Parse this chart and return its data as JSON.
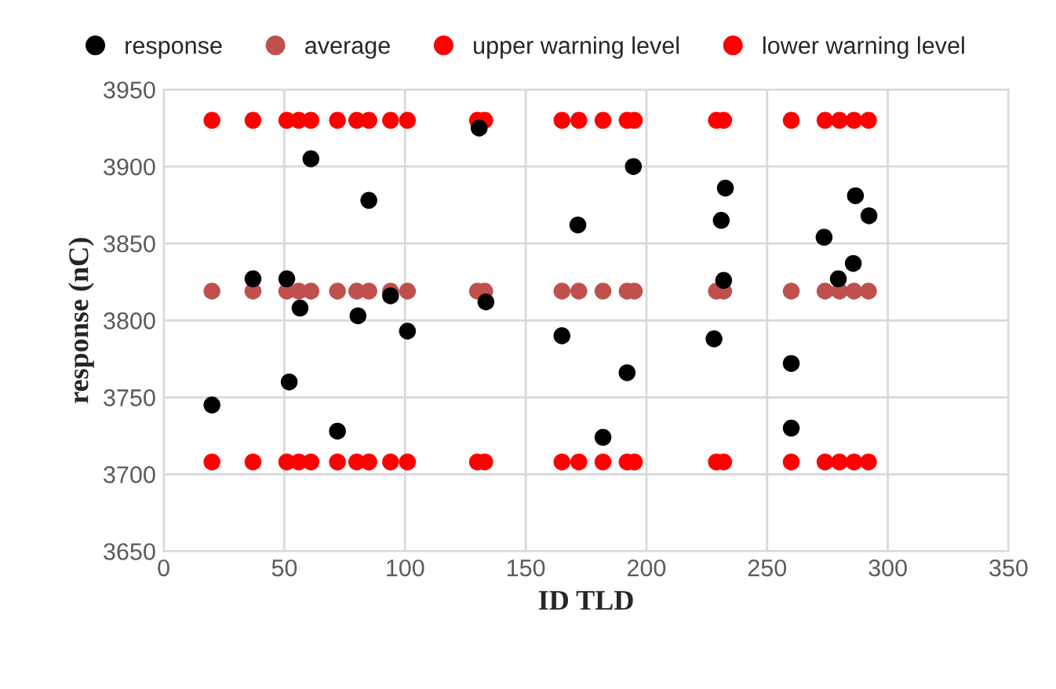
{
  "chart_data": {
    "type": "scatter",
    "xlabel": "ID TLD",
    "ylabel": "response (nC)",
    "series": [
      {
        "name": "response",
        "color": "#000000",
        "x": [
          20,
          37,
          51,
          52,
          56.5,
          61,
          72,
          80.5,
          85,
          94,
          101,
          130.7,
          133.5,
          165,
          171.6,
          182,
          192,
          194.6,
          228,
          231,
          232,
          232.7,
          260,
          260,
          273.6,
          279.5,
          285.7,
          286.6,
          292.2
        ],
        "values": [
          3745,
          3827,
          3827,
          3760,
          3808,
          3905,
          3728,
          3803,
          3878,
          3816,
          3793,
          3925,
          3812,
          3790,
          3862,
          3724,
          3766,
          3900,
          3788,
          3865,
          3826,
          3886,
          3772,
          3730,
          3854,
          3827,
          3837,
          3881,
          3868
        ]
      },
      {
        "name": "average",
        "color": "#c0504d",
        "x": [
          20,
          37,
          51,
          56,
          61,
          72,
          80,
          85,
          94,
          101,
          130,
          133,
          165,
          172,
          182,
          192,
          195,
          229,
          232,
          260,
          274,
          280,
          286,
          292
        ],
        "values": [
          3819,
          3819,
          3819,
          3819,
          3819,
          3819,
          3819,
          3819,
          3819,
          3819,
          3819,
          3819,
          3819,
          3819,
          3819,
          3819,
          3819,
          3819,
          3819,
          3819,
          3819,
          3819,
          3819,
          3819
        ]
      },
      {
        "name": "upper warning level",
        "color": "#ff0000",
        "x": [
          20,
          37,
          51,
          56,
          61,
          72,
          80,
          85,
          94,
          101,
          130,
          133,
          165,
          172,
          182,
          192,
          195,
          229,
          232,
          260,
          274,
          280,
          286,
          292
        ],
        "values": [
          3930,
          3930,
          3930,
          3930,
          3930,
          3930,
          3930,
          3930,
          3930,
          3930,
          3930,
          3930,
          3930,
          3930,
          3930,
          3930,
          3930,
          3930,
          3930,
          3930,
          3930,
          3930,
          3930,
          3930
        ]
      },
      {
        "name": "lower warning level",
        "color": "#ff0000",
        "x": [
          20,
          37,
          51,
          56,
          61,
          72,
          80,
          85,
          94,
          101,
          130,
          133,
          165,
          172,
          182,
          192,
          195,
          229,
          232,
          260,
          274,
          280,
          286,
          292
        ],
        "values": [
          3708,
          3708,
          3708,
          3708,
          3708,
          3708,
          3708,
          3708,
          3708,
          3708,
          3708,
          3708,
          3708,
          3708,
          3708,
          3708,
          3708,
          3708,
          3708,
          3708,
          3708,
          3708,
          3708,
          3708
        ]
      }
    ],
    "xlim": [
      0,
      350
    ],
    "xticks": [
      0,
      50,
      100,
      150,
      200,
      250,
      300,
      350
    ],
    "ylim": [
      3650,
      3950
    ],
    "yticks": [
      3650,
      3700,
      3750,
      3800,
      3850,
      3900,
      3950
    ],
    "grid": true,
    "legend": "top",
    "marker": "circle"
  }
}
